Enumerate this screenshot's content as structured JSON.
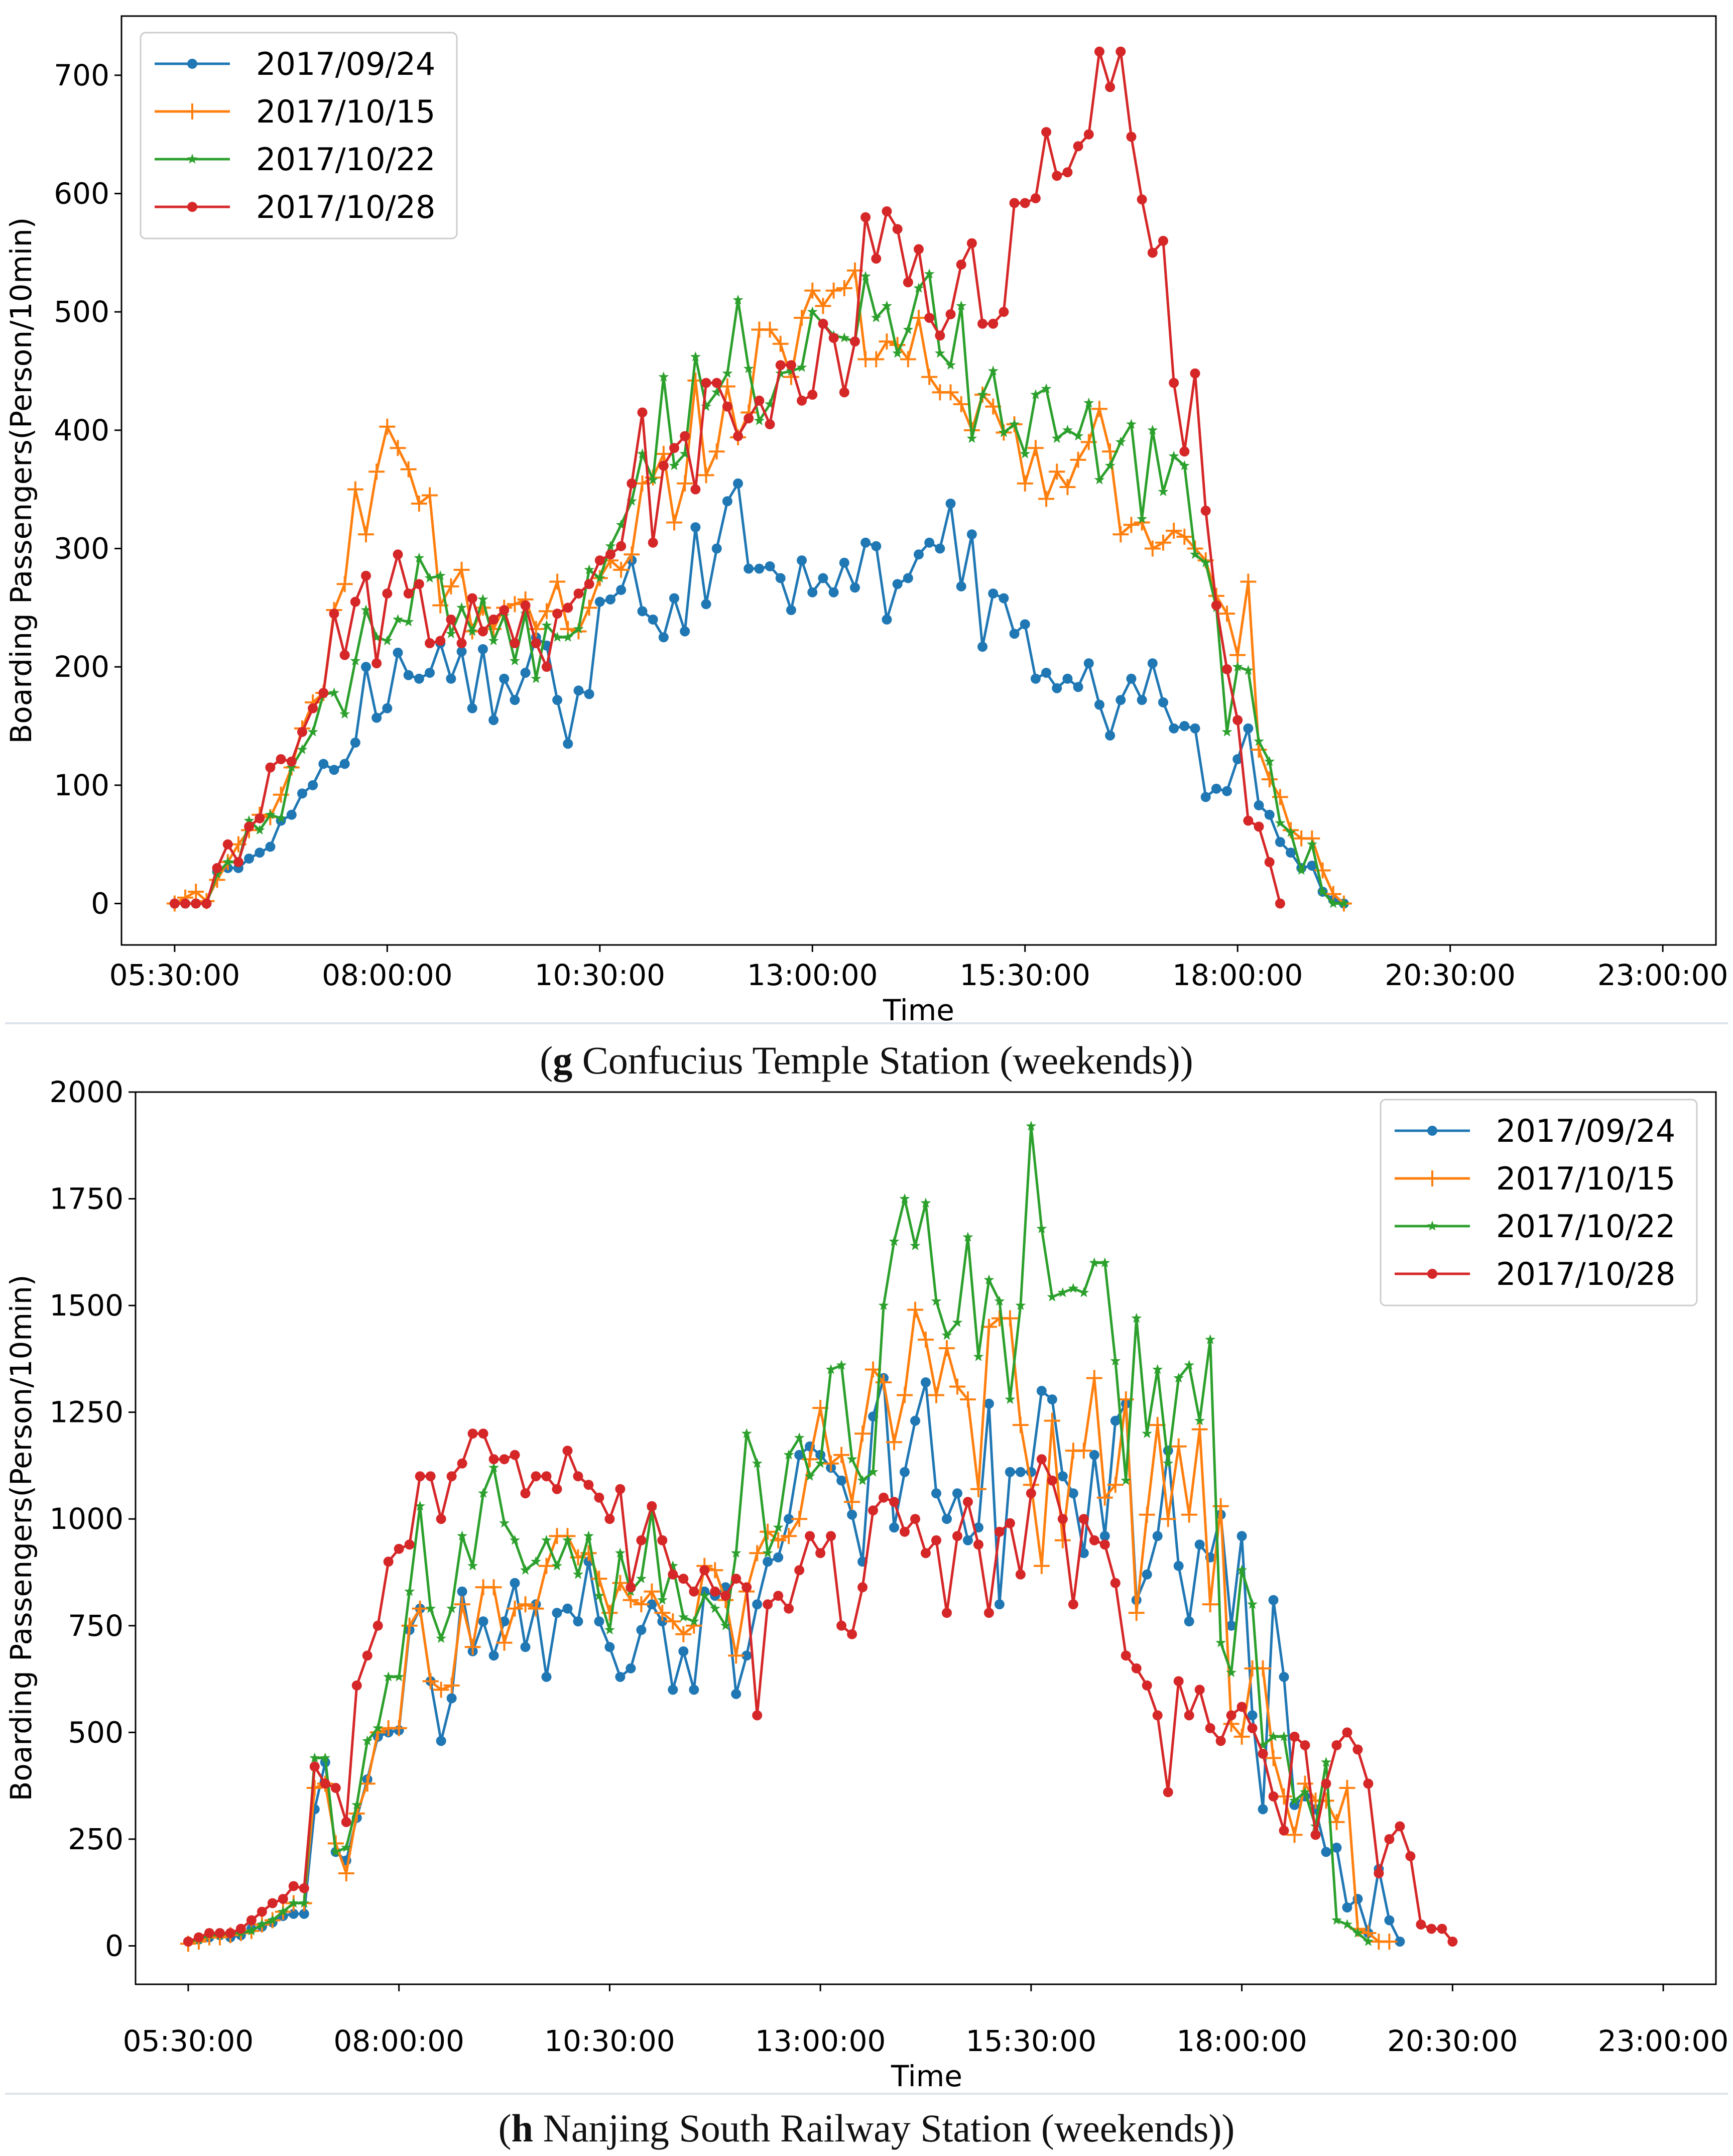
{
  "chart_data": [
    {
      "type": "line",
      "caption_letter": "g",
      "caption_text": " Confucius Temple Station (weekends)",
      "xlabel": "Time",
      "ylabel": "Boarding Passengers(Person/10min)",
      "xlim": [
        -5,
        145
      ],
      "ylim": [
        -35,
        750
      ],
      "x_ticks": [
        {
          "x": 0,
          "label": "05:30:00"
        },
        {
          "x": 20,
          "label": "08:00:00"
        },
        {
          "x": 40,
          "label": "10:30:00"
        },
        {
          "x": 60,
          "label": "13:00:00"
        },
        {
          "x": 80,
          "label": "15:30:00"
        },
        {
          "x": 100,
          "label": "18:00:00"
        },
        {
          "x": 120,
          "label": "20:30:00"
        },
        {
          "x": 140,
          "label": "23:00:00"
        }
      ],
      "y_ticks": [
        0,
        100,
        200,
        300,
        400,
        500,
        600,
        700
      ],
      "legend_position": "upper-left",
      "series": [
        {
          "name": "2017/09/24",
          "color": "#1f77b4",
          "marker": "dot",
          "values": [
            0,
            0,
            0,
            0,
            27,
            30,
            30,
            38,
            43,
            48,
            70,
            75,
            93,
            100,
            118,
            113,
            118,
            136,
            200,
            157,
            165,
            212,
            193,
            190,
            195,
            220,
            190,
            213,
            165,
            215,
            155,
            190,
            172,
            195,
            225,
            218,
            172,
            135,
            180,
            177,
            255,
            257,
            265,
            290,
            247,
            240,
            225,
            258,
            230,
            318,
            253,
            300,
            340,
            355,
            283,
            283,
            285,
            275,
            248,
            290,
            263,
            275,
            263,
            288,
            267,
            305,
            302,
            240,
            270,
            275,
            295,
            305,
            300,
            338,
            268,
            312,
            217,
            262,
            258,
            228,
            236,
            190,
            195,
            182,
            190,
            183,
            203,
            168,
            142,
            172,
            190,
            172,
            203,
            170,
            148,
            150,
            148,
            90,
            97,
            95,
            122,
            148,
            83,
            75,
            52,
            43,
            30,
            32,
            10,
            3,
            0
          ]
        },
        {
          "name": "2017/10/15",
          "color": "#ff7f0e",
          "marker": "plus",
          "values": [
            0,
            5,
            10,
            2,
            20,
            35,
            50,
            62,
            75,
            73,
            92,
            115,
            148,
            170,
            178,
            248,
            270,
            350,
            312,
            365,
            403,
            385,
            367,
            338,
            345,
            252,
            268,
            282,
            230,
            250,
            232,
            250,
            253,
            257,
            232,
            247,
            272,
            232,
            230,
            250,
            275,
            290,
            282,
            295,
            355,
            360,
            380,
            322,
            355,
            442,
            362,
            382,
            437,
            394,
            415,
            485,
            485,
            473,
            445,
            495,
            518,
            505,
            518,
            520,
            535,
            460,
            460,
            475,
            472,
            460,
            495,
            445,
            432,
            432,
            422,
            400,
            430,
            420,
            398,
            405,
            355,
            385,
            342,
            365,
            352,
            375,
            390,
            418,
            382,
            312,
            320,
            322,
            300,
            305,
            315,
            310,
            300,
            290,
            260,
            245,
            210,
            272,
            130,
            105,
            90,
            62,
            55,
            55,
            28,
            8,
            0
          ]
        },
        {
          "name": "2017/10/22",
          "color": "#2ca02c",
          "marker": "star",
          "values": [
            0,
            0,
            0,
            0,
            25,
            35,
            35,
            70,
            62,
            75,
            72,
            115,
            130,
            145,
            177,
            178,
            160,
            205,
            248,
            225,
            222,
            240,
            238,
            292,
            275,
            277,
            228,
            250,
            230,
            257,
            222,
            243,
            205,
            245,
            190,
            235,
            225,
            225,
            232,
            282,
            275,
            302,
            320,
            340,
            380,
            358,
            445,
            370,
            380,
            462,
            420,
            432,
            448,
            510,
            452,
            408,
            422,
            448,
            450,
            453,
            500,
            490,
            480,
            478,
            475,
            530,
            495,
            505,
            465,
            485,
            520,
            532,
            465,
            455,
            505,
            393,
            430,
            450,
            398,
            405,
            380,
            430,
            435,
            393,
            400,
            395,
            423,
            358,
            370,
            390,
            405,
            325,
            400,
            348,
            378,
            370,
            295,
            288,
            250,
            145,
            200,
            197,
            137,
            120,
            68,
            60,
            28,
            50,
            10,
            0,
            0
          ]
        },
        {
          "name": "2017/10/28",
          "color": "#d62728",
          "marker": "dot",
          "values": [
            0,
            0,
            0,
            0,
            30,
            50,
            35,
            65,
            72,
            115,
            122,
            120,
            145,
            165,
            178,
            245,
            210,
            255,
            277,
            203,
            262,
            295,
            262,
            270,
            220,
            222,
            240,
            220,
            258,
            230,
            240,
            248,
            220,
            252,
            220,
            200,
            245,
            250,
            262,
            270,
            290,
            295,
            302,
            355,
            415,
            305,
            370,
            385,
            395,
            350,
            440,
            440,
            420,
            395,
            410,
            425,
            405,
            455,
            455,
            425,
            430,
            490,
            478,
            432,
            475,
            580,
            545,
            585,
            570,
            525,
            553,
            495,
            480,
            498,
            540,
            558,
            490,
            490,
            500,
            592,
            592,
            596,
            652,
            615,
            618,
            640,
            650,
            720,
            690,
            720,
            648,
            595,
            550,
            560,
            440,
            382,
            448,
            332,
            252,
            198,
            155,
            70,
            65,
            35,
            0
          ]
        }
      ]
    },
    {
      "type": "line",
      "caption_letter": "h",
      "caption_text": " Nanjing South Railway Station (weekends)",
      "xlabel": "Time",
      "ylabel": "Boarding Passengers(Person/10min)",
      "xlim": [
        -5,
        145
      ],
      "ylim": [
        -90,
        2000
      ],
      "x_ticks": [
        {
          "x": 0,
          "label": "05:30:00"
        },
        {
          "x": 20,
          "label": "08:00:00"
        },
        {
          "x": 40,
          "label": "10:30:00"
        },
        {
          "x": 60,
          "label": "13:00:00"
        },
        {
          "x": 80,
          "label": "15:30:00"
        },
        {
          "x": 100,
          "label": "18:00:00"
        },
        {
          "x": 120,
          "label": "20:30:00"
        },
        {
          "x": 140,
          "label": "23:00:00"
        }
      ],
      "y_ticks": [
        0,
        250,
        500,
        750,
        1000,
        1250,
        1500,
        1750,
        2000
      ],
      "legend_position": "upper-right",
      "series": [
        {
          "name": "2017/09/24",
          "color": "#1f77b4",
          "marker": "dot",
          "values": [
            10,
            15,
            20,
            25,
            20,
            25,
            40,
            45,
            55,
            70,
            75,
            75,
            320,
            430,
            220,
            200,
            300,
            390,
            490,
            500,
            505,
            740,
            790,
            620,
            480,
            580,
            830,
            690,
            760,
            680,
            760,
            850,
            700,
            800,
            630,
            780,
            790,
            760,
            900,
            760,
            700,
            630,
            650,
            740,
            800,
            760,
            600,
            690,
            600,
            830,
            820,
            840,
            590,
            680,
            800,
            900,
            910,
            1000,
            1150,
            1170,
            1150,
            1120,
            1090,
            1010,
            900,
            1240,
            1330,
            980,
            1110,
            1230,
            1320,
            1060,
            1000,
            1060,
            950,
            980,
            1270,
            800,
            1110,
            1110,
            1110,
            1300,
            1280,
            1100,
            1060,
            920,
            1150,
            960,
            1230,
            1270,
            810,
            870,
            960,
            1160,
            890,
            760,
            940,
            910,
            1010,
            750,
            960,
            540,
            320,
            810,
            630,
            330,
            350,
            320,
            220,
            230,
            90,
            110,
            30,
            180,
            60,
            10
          ]
        },
        {
          "name": "2017/10/15",
          "color": "#ff7f0e",
          "marker": "plus",
          "values": [
            5,
            10,
            20,
            20,
            25,
            30,
            35,
            50,
            60,
            80,
            100,
            100,
            370,
            380,
            240,
            170,
            310,
            380,
            500,
            510,
            510,
            750,
            790,
            620,
            600,
            610,
            800,
            700,
            840,
            840,
            710,
            790,
            800,
            790,
            890,
            960,
            960,
            910,
            920,
            860,
            780,
            850,
            810,
            800,
            830,
            780,
            760,
            730,
            750,
            890,
            880,
            810,
            680,
            830,
            920,
            970,
            950,
            960,
            1000,
            1140,
            1260,
            1130,
            1150,
            1040,
            1200,
            1350,
            1320,
            1180,
            1290,
            1490,
            1420,
            1290,
            1400,
            1310,
            1280,
            1070,
            1450,
            1470,
            1470,
            1220,
            1080,
            890,
            1230,
            950,
            1160,
            1160,
            1330,
            1050,
            1080,
            1280,
            780,
            1010,
            1220,
            1000,
            1170,
            1010,
            1210,
            800,
            1030,
            520,
            490,
            650,
            650,
            440,
            350,
            260,
            380,
            340,
            340,
            290,
            370,
            40,
            30,
            10,
            10
          ]
        },
        {
          "name": "2017/10/22",
          "color": "#2ca02c",
          "marker": "star",
          "values": [
            10,
            15,
            25,
            25,
            30,
            30,
            35,
            50,
            60,
            80,
            100,
            100,
            440,
            440,
            220,
            230,
            330,
            480,
            510,
            630,
            630,
            830,
            1030,
            790,
            720,
            790,
            960,
            890,
            1060,
            1120,
            990,
            950,
            880,
            900,
            950,
            890,
            950,
            870,
            960,
            820,
            740,
            920,
            830,
            860,
            1020,
            810,
            890,
            770,
            760,
            820,
            790,
            750,
            920,
            1200,
            1130,
            920,
            980,
            1150,
            1190,
            1100,
            1130,
            1350,
            1360,
            1140,
            1090,
            1110,
            1500,
            1650,
            1750,
            1640,
            1740,
            1510,
            1430,
            1460,
            1660,
            1380,
            1560,
            1510,
            1280,
            1500,
            1920,
            1680,
            1520,
            1530,
            1540,
            1530,
            1600,
            1600,
            1370,
            1090,
            1470,
            1200,
            1350,
            1130,
            1330,
            1360,
            1230,
            1420,
            710,
            640,
            880,
            800,
            470,
            490,
            490,
            340,
            360,
            280,
            430,
            60,
            50,
            30,
            10
          ]
        },
        {
          "name": "2017/10/28",
          "color": "#d62728",
          "marker": "dot",
          "values": [
            10,
            20,
            30,
            30,
            30,
            40,
            60,
            80,
            100,
            110,
            140,
            135,
            420,
            380,
            370,
            290,
            610,
            680,
            750,
            900,
            930,
            940,
            1100,
            1100,
            1000,
            1100,
            1130,
            1200,
            1200,
            1140,
            1140,
            1150,
            1060,
            1100,
            1100,
            1070,
            1160,
            1100,
            1080,
            1050,
            1000,
            1070,
            840,
            950,
            1030,
            950,
            870,
            860,
            830,
            880,
            830,
            820,
            860,
            840,
            540,
            800,
            820,
            790,
            880,
            960,
            920,
            960,
            750,
            730,
            840,
            1020,
            1050,
            1040,
            970,
            1000,
            920,
            950,
            780,
            960,
            1040,
            940,
            780,
            970,
            990,
            870,
            1060,
            1140,
            1090,
            1000,
            800,
            1000,
            950,
            940,
            850,
            680,
            650,
            610,
            540,
            360,
            620,
            540,
            600,
            510,
            480,
            540,
            560,
            510,
            450,
            350,
            270,
            490,
            470,
            260,
            380,
            470,
            500,
            460,
            380,
            170,
            250,
            280,
            210,
            50,
            40,
            40,
            10
          ]
        }
      ]
    }
  ]
}
